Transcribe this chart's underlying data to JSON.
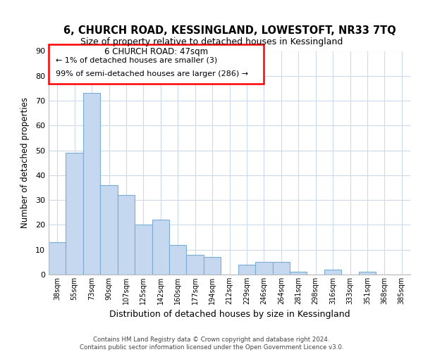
{
  "title": "6, CHURCH ROAD, KESSINGLAND, LOWESTOFT, NR33 7TQ",
  "subtitle": "Size of property relative to detached houses in Kessingland",
  "xlabel": "Distribution of detached houses by size in Kessingland",
  "ylabel": "Number of detached properties",
  "bar_labels": [
    "38sqm",
    "55sqm",
    "73sqm",
    "90sqm",
    "107sqm",
    "125sqm",
    "142sqm",
    "160sqm",
    "177sqm",
    "194sqm",
    "212sqm",
    "229sqm",
    "246sqm",
    "264sqm",
    "281sqm",
    "298sqm",
    "316sqm",
    "333sqm",
    "351sqm",
    "368sqm",
    "385sqm"
  ],
  "bar_values": [
    13,
    49,
    73,
    36,
    32,
    20,
    22,
    12,
    8,
    7,
    0,
    4,
    5,
    5,
    1,
    0,
    2,
    0,
    1,
    0,
    0
  ],
  "bar_color": "#c5d8ef",
  "bar_edge_color": "#7aaed4",
  "ylim": [
    0,
    90
  ],
  "yticks": [
    0,
    10,
    20,
    30,
    40,
    50,
    60,
    70,
    80,
    90
  ],
  "annotation_title": "6 CHURCH ROAD: 47sqm",
  "annotation_line1": "← 1% of detached houses are smaller (3)",
  "annotation_line2": "99% of semi-detached houses are larger (286) →",
  "footer1": "Contains HM Land Registry data © Crown copyright and database right 2024.",
  "footer2": "Contains public sector information licensed under the Open Government Licence v3.0.",
  "background_color": "#ffffff",
  "grid_color": "#cddaeb"
}
